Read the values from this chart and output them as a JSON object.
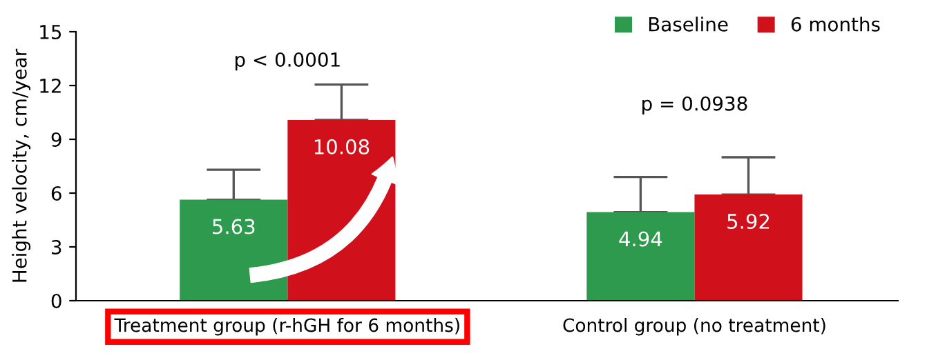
{
  "chart_data": {
    "type": "bar",
    "ylabel": "Height velocity, cm/year",
    "categories": [
      "Treatment group (r-hGH for 6 months)",
      "Control group (no treatment)"
    ],
    "series": [
      {
        "name": "Baseline",
        "color": "#2e9a4e",
        "values": [
          5.63,
          4.94
        ],
        "errors": [
          [
            5.63,
            7.3
          ],
          [
            4.94,
            6.9
          ]
        ]
      },
      {
        "name": "6 months",
        "color": "#d0111c",
        "values": [
          10.08,
          5.92
        ],
        "errors": [
          [
            10.08,
            12.05
          ],
          [
            5.92,
            8.0
          ]
        ]
      }
    ],
    "annotations": [
      "p < 0.0001",
      "p = 0.0938"
    ],
    "ylim": [
      0,
      15
    ],
    "yticks": [
      0,
      3,
      6,
      9,
      12,
      15
    ],
    "data_labels": true,
    "legend": "top right",
    "grid": false
  }
}
